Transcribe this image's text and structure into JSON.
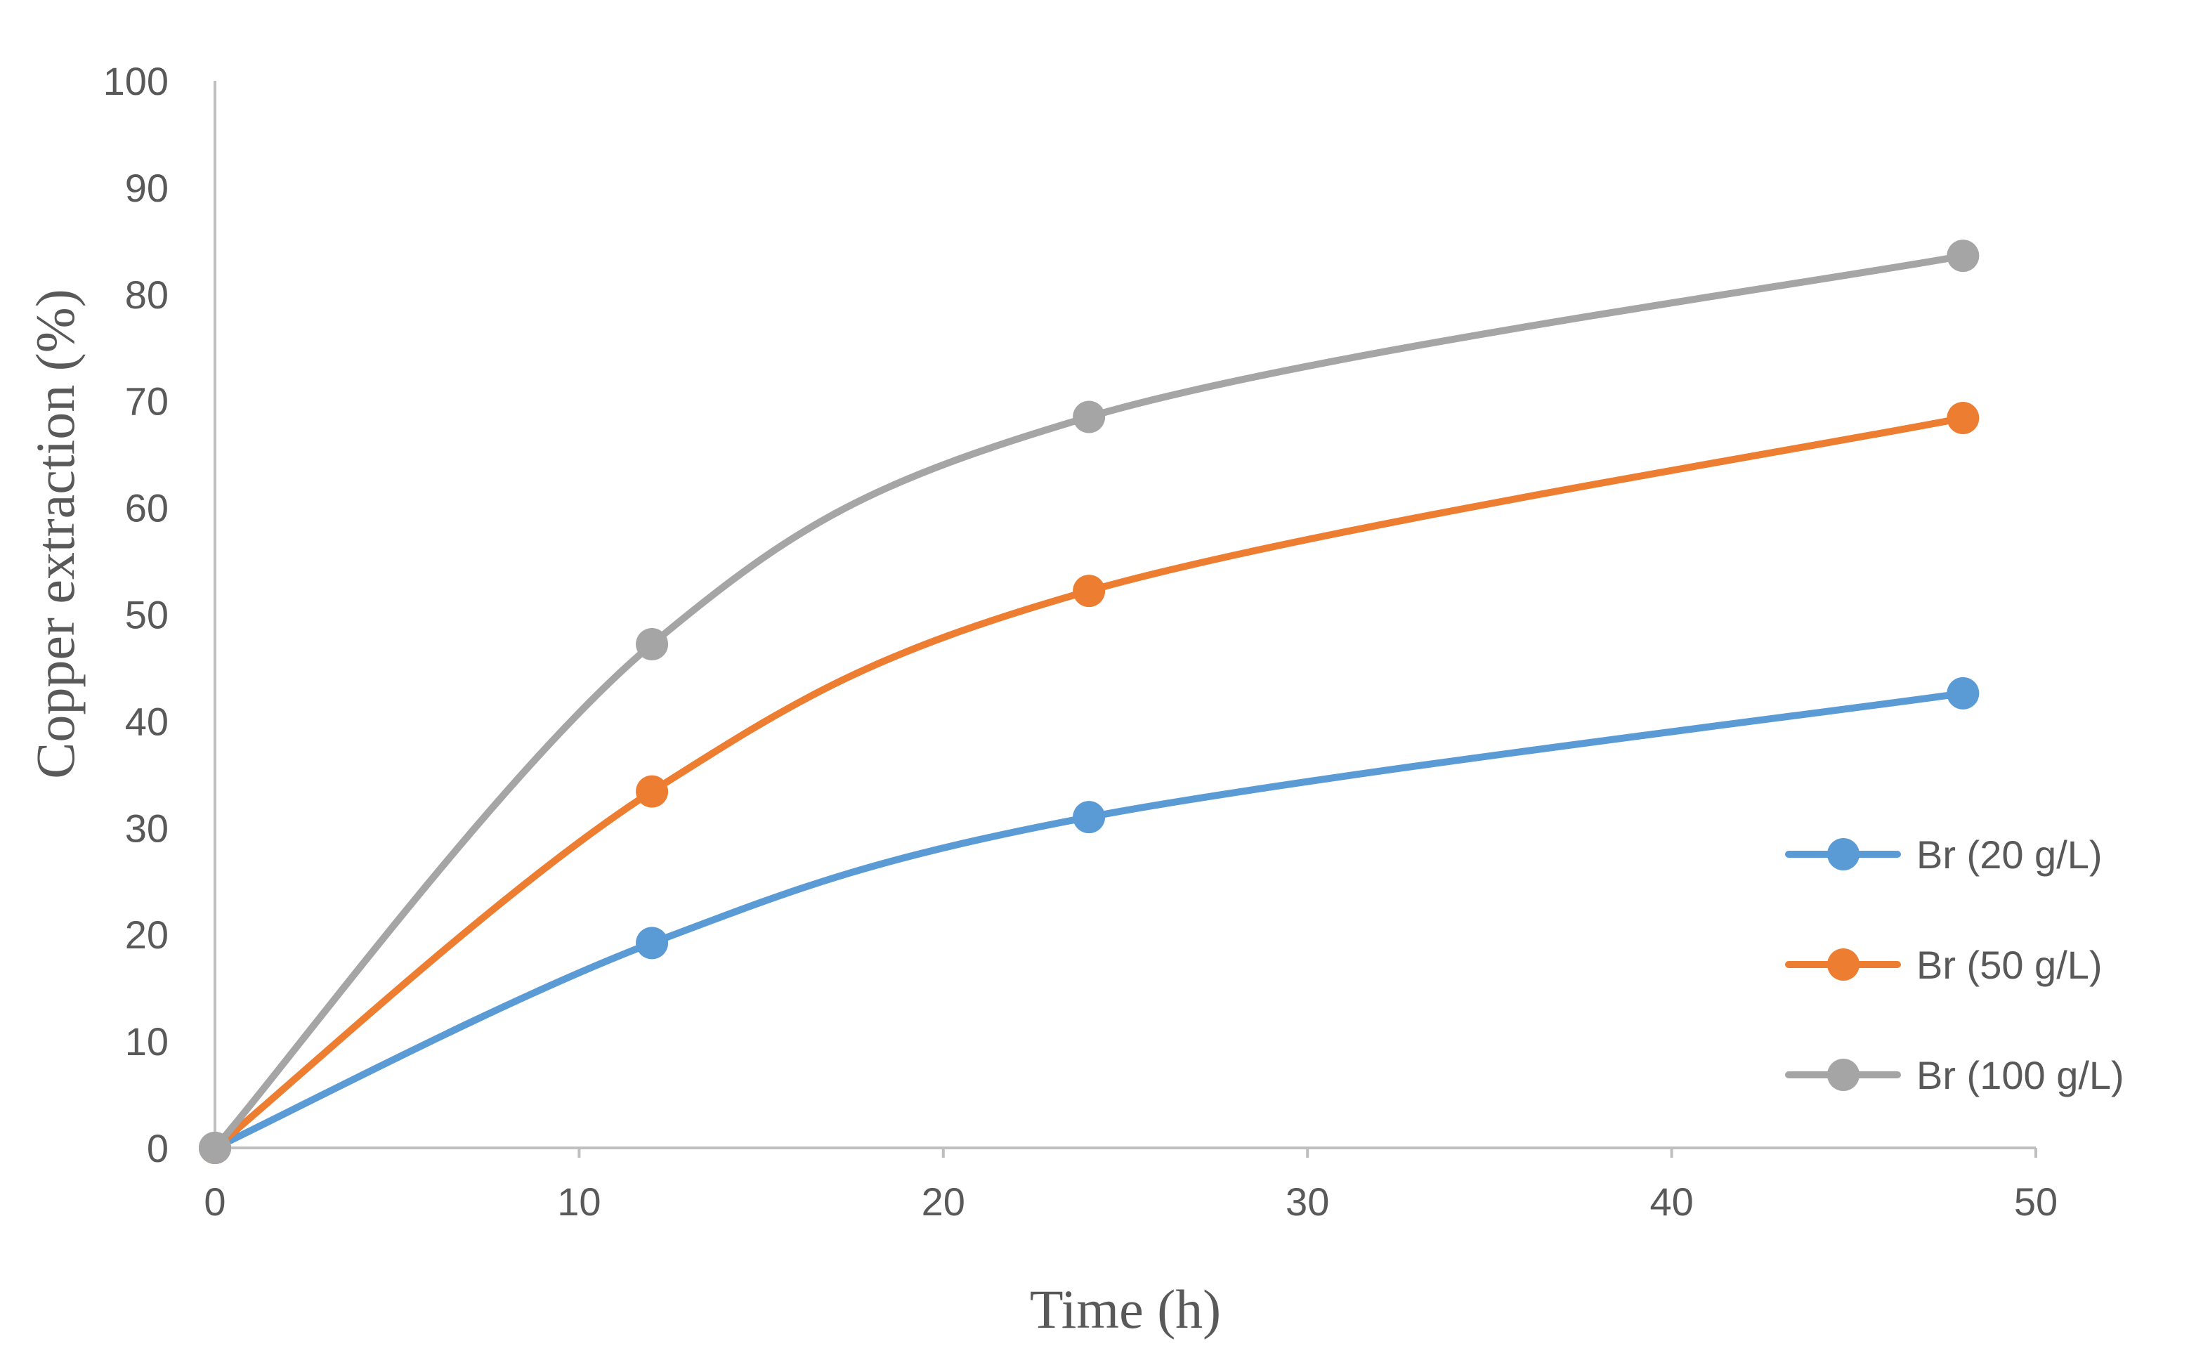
{
  "chart_data": {
    "type": "line",
    "title": "",
    "xlabel": "Time (h)",
    "ylabel": "Copper extraction (%)",
    "xlim": [
      0,
      50
    ],
    "ylim": [
      0,
      100
    ],
    "xticks": [
      0,
      10,
      20,
      30,
      40,
      50
    ],
    "yticks": [
      0,
      10,
      20,
      30,
      40,
      50,
      60,
      70,
      80,
      90,
      100
    ],
    "grid": false,
    "smooth": true,
    "legend_position": "right",
    "x": [
      0,
      12,
      24,
      48
    ],
    "series": [
      {
        "name": "Br (20 g/L)",
        "color": "#5b9bd5",
        "values": [
          0,
          19.2,
          31.0,
          42.6
        ]
      },
      {
        "name": "Br (50 g/L)",
        "color": "#ed7d31",
        "values": [
          0,
          33.4,
          52.2,
          68.4
        ]
      },
      {
        "name": "Br (100 g/L)",
        "color": "#a5a5a5",
        "values": [
          0,
          47.2,
          68.5,
          83.6
        ]
      }
    ]
  }
}
